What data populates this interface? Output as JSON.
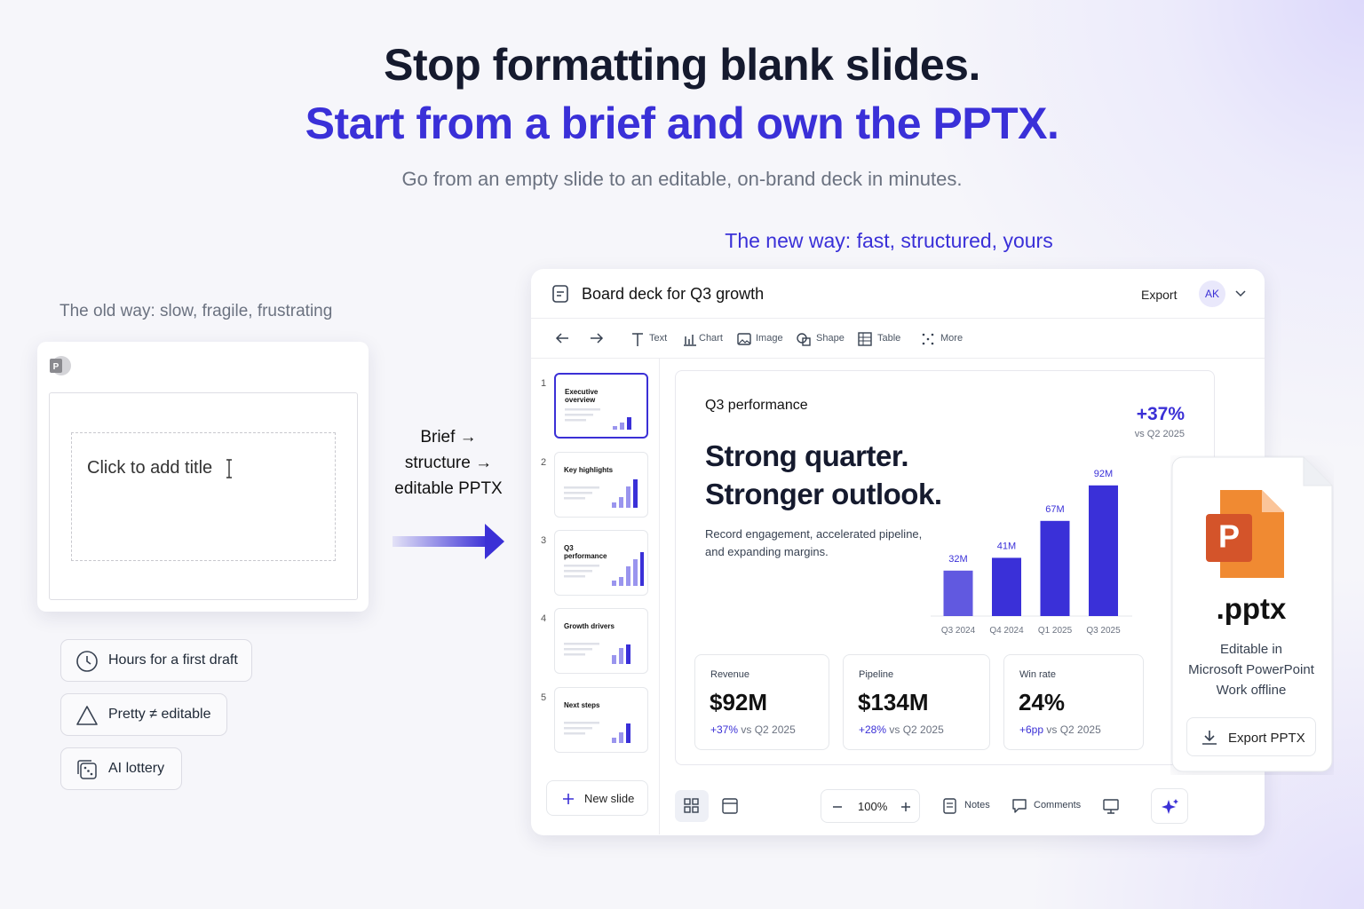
{
  "header": {
    "title": "Stop formatting blank slides.",
    "subtitle": "Start from a brief and own the PPTX.",
    "tagline": "Go from an empty slide to an editable, on-brand deck in minutes."
  },
  "old_way": {
    "label": "The old way: slow, fragile, frustrating",
    "placeholder": "Click to add title",
    "pains": [
      "Hours for a first draft",
      "Pretty ≠ editable",
      "AI lottery"
    ]
  },
  "transition": [
    "Brief →",
    "structure →",
    "editable PPTX"
  ],
  "new_way": {
    "label": "The new way: fast, structured, yours",
    "app": {
      "doc_title": "Board deck for Q3 growth",
      "export": "Export",
      "avatar": "AK",
      "toolbar": [
        "Text",
        "Chart",
        "Image",
        "Shape",
        "Table",
        "More"
      ],
      "thumbnails": [
        {
          "number": 1,
          "title": "Executive overview"
        },
        {
          "number": 2,
          "title": "Key highlights"
        },
        {
          "number": 3,
          "title": "Q3 performance"
        },
        {
          "number": 4,
          "title": "Growth drivers"
        },
        {
          "number": 5,
          "title": "Next steps"
        }
      ],
      "new_slide": "New slide",
      "zoom": "100%",
      "bottom": [
        "Notes",
        "Comments"
      ],
      "slide": {
        "eyebrow": "Q3 performance",
        "headline": [
          "Strong quarter.",
          "Stronger outlook."
        ],
        "body": "Record engagement, accelerated pipeline, and expanding margins.",
        "delta": "+37%",
        "delta_note": "vs Q2 2025",
        "chart": {
          "type": "bar",
          "categories": [
            "Q3 2024",
            "Q4 2024",
            "Q1 2025",
            "Q3 2025"
          ],
          "values": [
            32,
            41,
            67,
            92
          ],
          "value_labels": [
            "32M",
            "41M",
            "67M",
            "92M"
          ],
          "color": "#3a30d8"
        },
        "metrics": [
          {
            "label": "Revenue",
            "value": "$92M",
            "change": "+37%",
            "note": "vs Q2 2025"
          },
          {
            "label": "Pipeline",
            "value": "$134M",
            "change": "+28%",
            "note": "vs Q2 2025"
          },
          {
            "label": "Win rate",
            "value": "24%",
            "change": "+6pp",
            "note": "vs Q2 2025"
          }
        ]
      }
    },
    "file": {
      "extension": ".pptx",
      "lines": [
        "Editable in",
        "Microsoft PowerPoint",
        "Work offline"
      ],
      "button": "Export PPTX"
    }
  }
}
